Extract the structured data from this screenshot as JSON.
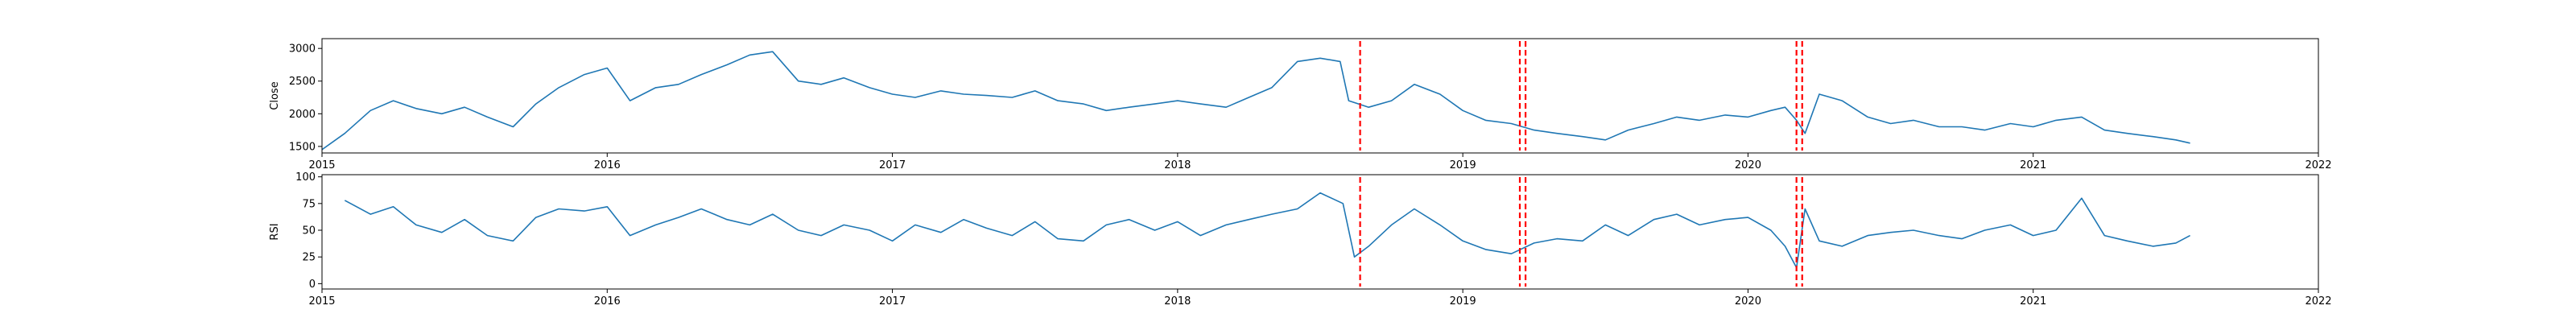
{
  "chart_data": [
    {
      "type": "line",
      "title": "",
      "xlabel": "",
      "ylabel": "Close",
      "xlim": [
        2015.0,
        2022.0
      ],
      "ylim": [
        1400,
        3150
      ],
      "x_ticks": [
        {
          "value": 2015,
          "label": "2015"
        },
        {
          "value": 2016,
          "label": "2016"
        },
        {
          "value": 2017,
          "label": "2017"
        },
        {
          "value": 2018,
          "label": "2018"
        },
        {
          "value": 2019,
          "label": "2019"
        },
        {
          "value": 2020,
          "label": "2020"
        },
        {
          "value": 2021,
          "label": "2021"
        },
        {
          "value": 2022,
          "label": "2022"
        }
      ],
      "y_ticks": [
        {
          "value": 1500,
          "label": "1500"
        },
        {
          "value": 2000,
          "label": "2000"
        },
        {
          "value": 2500,
          "label": "2500"
        },
        {
          "value": 3000,
          "label": "3000"
        }
      ],
      "series": [
        {
          "color": "#1f77b4",
          "x": [
            2015.0,
            2015.08,
            2015.17,
            2015.25,
            2015.33,
            2015.42,
            2015.5,
            2015.58,
            2015.67,
            2015.75,
            2015.83,
            2015.92,
            2016.0,
            2016.08,
            2016.17,
            2016.25,
            2016.33,
            2016.42,
            2016.5,
            2016.58,
            2016.67,
            2016.75,
            2016.83,
            2016.92,
            2017.0,
            2017.08,
            2017.17,
            2017.25,
            2017.33,
            2017.42,
            2017.5,
            2017.58,
            2017.67,
            2017.75,
            2017.83,
            2017.92,
            2018.0,
            2018.08,
            2018.17,
            2018.25,
            2018.33,
            2018.42,
            2018.5,
            2018.57,
            2018.6,
            2018.67,
            2018.75,
            2018.83,
            2018.92,
            2019.0,
            2019.08,
            2019.17,
            2019.25,
            2019.33,
            2019.42,
            2019.5,
            2019.58,
            2019.67,
            2019.75,
            2019.83,
            2019.92,
            2020.0,
            2020.08,
            2020.13,
            2020.17,
            2020.2,
            2020.25,
            2020.33,
            2020.42,
            2020.5,
            2020.58,
            2020.67,
            2020.75,
            2020.83,
            2020.92,
            2021.0,
            2021.08,
            2021.17,
            2021.25,
            2021.33,
            2021.42,
            2021.5,
            2021.55
          ],
          "y": [
            1450,
            1700,
            2050,
            2200,
            2080,
            2000,
            2100,
            1950,
            1800,
            2150,
            2400,
            2600,
            2700,
            2200,
            2400,
            2450,
            2600,
            2750,
            2900,
            2950,
            2500,
            2450,
            2550,
            2400,
            2300,
            2250,
            2350,
            2300,
            2280,
            2250,
            2350,
            2200,
            2150,
            2050,
            2100,
            2150,
            2200,
            2150,
            2100,
            2250,
            2400,
            2800,
            2850,
            2800,
            2200,
            2100,
            2200,
            2450,
            2300,
            2050,
            1900,
            1850,
            1750,
            1700,
            1650,
            1600,
            1750,
            1850,
            1950,
            1900,
            1980,
            1950,
            2050,
            2100,
            1900,
            1700,
            2300,
            2200,
            1950,
            1850,
            1900,
            1800,
            1800,
            1750,
            1850,
            1800,
            1900,
            1950,
            1750,
            1700,
            1650,
            1600,
            1550
          ]
        }
      ],
      "event_lines_x": [
        2018.64,
        2019.2,
        2019.22,
        2020.17,
        2020.19
      ]
    },
    {
      "type": "line",
      "title": "",
      "xlabel": "",
      "ylabel": "RSI",
      "xlim": [
        2015.0,
        2022.0
      ],
      "ylim": [
        -5,
        102
      ],
      "x_ticks": [
        {
          "value": 2015,
          "label": "2015"
        },
        {
          "value": 2016,
          "label": "2016"
        },
        {
          "value": 2017,
          "label": "2017"
        },
        {
          "value": 2018,
          "label": "2018"
        },
        {
          "value": 2019,
          "label": "2019"
        },
        {
          "value": 2020,
          "label": "2020"
        },
        {
          "value": 2021,
          "label": "2021"
        },
        {
          "value": 2022,
          "label": "2022"
        }
      ],
      "y_ticks": [
        {
          "value": 0,
          "label": "0"
        },
        {
          "value": 25,
          "label": "25"
        },
        {
          "value": 50,
          "label": "50"
        },
        {
          "value": 75,
          "label": "75"
        },
        {
          "value": 100,
          "label": "100"
        }
      ],
      "series": [
        {
          "color": "#1f77b4",
          "x": [
            2015.08,
            2015.17,
            2015.25,
            2015.33,
            2015.42,
            2015.5,
            2015.58,
            2015.67,
            2015.75,
            2015.83,
            2015.92,
            2016.0,
            2016.08,
            2016.17,
            2016.25,
            2016.33,
            2016.42,
            2016.5,
            2016.58,
            2016.67,
            2016.75,
            2016.83,
            2016.92,
            2017.0,
            2017.08,
            2017.17,
            2017.25,
            2017.33,
            2017.42,
            2017.5,
            2017.58,
            2017.67,
            2017.75,
            2017.83,
            2017.92,
            2018.0,
            2018.08,
            2018.17,
            2018.25,
            2018.33,
            2018.42,
            2018.5,
            2018.58,
            2018.62,
            2018.67,
            2018.75,
            2018.83,
            2018.92,
            2019.0,
            2019.08,
            2019.17,
            2019.25,
            2019.33,
            2019.42,
            2019.5,
            2019.58,
            2019.67,
            2019.75,
            2019.83,
            2019.92,
            2020.0,
            2020.08,
            2020.13,
            2020.17,
            2020.2,
            2020.25,
            2020.33,
            2020.42,
            2020.5,
            2020.58,
            2020.67,
            2020.75,
            2020.83,
            2020.92,
            2021.0,
            2021.08,
            2021.17,
            2021.25,
            2021.33,
            2021.42,
            2021.5,
            2021.55
          ],
          "y": [
            78,
            65,
            72,
            55,
            48,
            60,
            45,
            40,
            62,
            70,
            68,
            72,
            45,
            55,
            62,
            70,
            60,
            55,
            65,
            50,
            45,
            55,
            50,
            40,
            55,
            48,
            60,
            52,
            45,
            58,
            42,
            40,
            55,
            60,
            50,
            58,
            45,
            55,
            60,
            65,
            70,
            85,
            75,
            25,
            35,
            55,
            70,
            55,
            40,
            32,
            28,
            38,
            42,
            40,
            55,
            45,
            60,
            65,
            55,
            60,
            62,
            50,
            35,
            15,
            70,
            40,
            35,
            45,
            48,
            50,
            45,
            42,
            50,
            55,
            45,
            50,
            80,
            45,
            40,
            35,
            38,
            45
          ]
        }
      ],
      "event_lines_x": [
        2018.64,
        2019.2,
        2019.22,
        2020.17,
        2020.19
      ]
    }
  ]
}
